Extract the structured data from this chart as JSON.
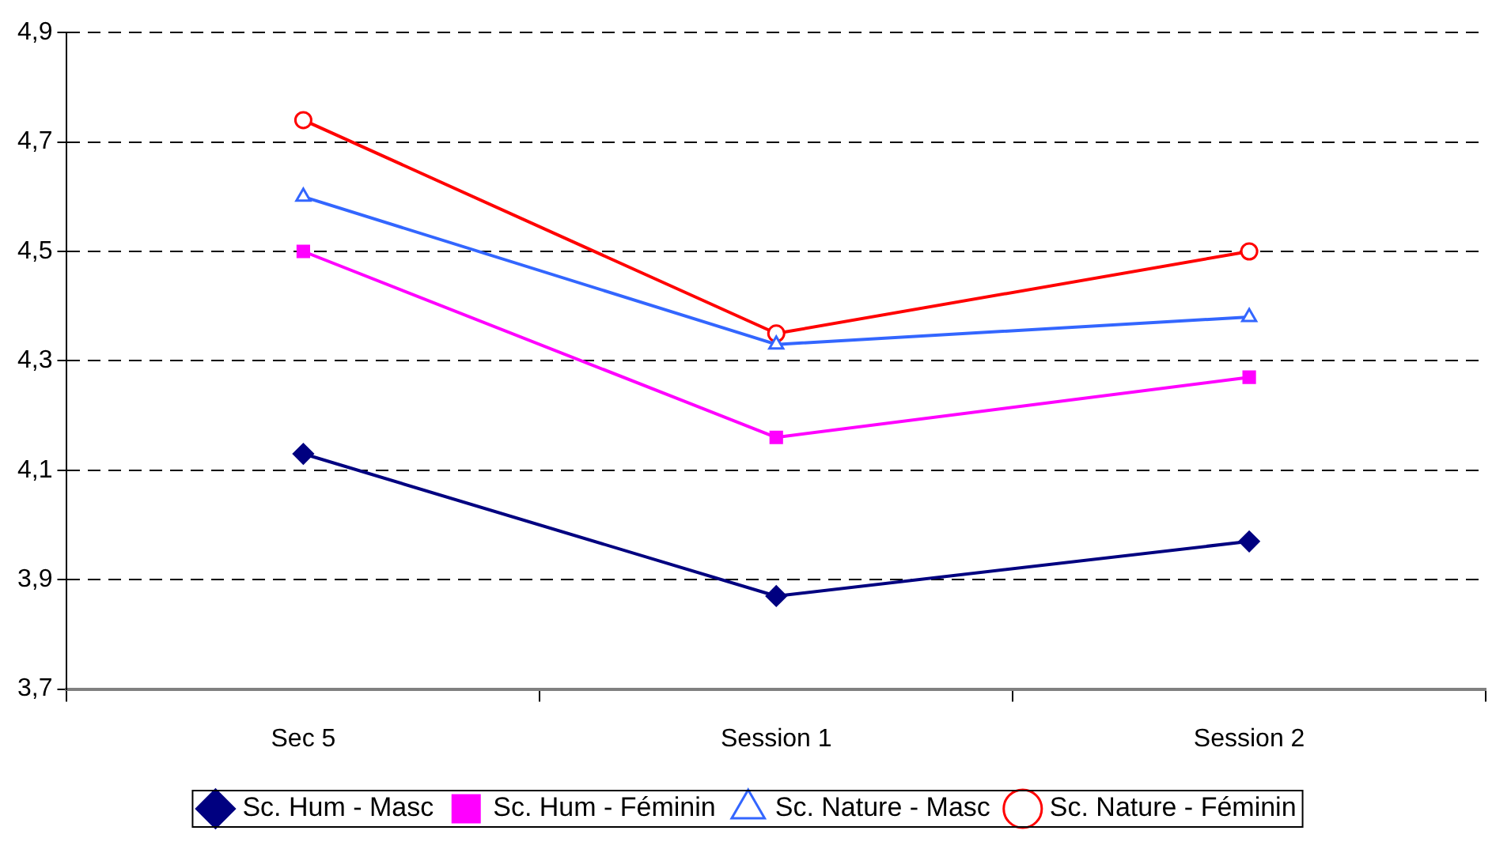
{
  "chart_data": {
    "type": "line",
    "categories": [
      "Sec 5",
      "Session 1",
      "Session 2"
    ],
    "series": [
      {
        "name": "Sc. Hum - Masc",
        "color": "#000080",
        "marker": "diamond",
        "values": [
          4.13,
          3.87,
          3.97
        ]
      },
      {
        "name": "Sc. Hum - Féminin",
        "color": "#ff00ff",
        "marker": "square",
        "values": [
          4.5,
          4.16,
          4.27
        ]
      },
      {
        "name": "Sc. Nature - Masc",
        "color": "#3366ff",
        "marker": "triangle",
        "values": [
          4.6,
          4.33,
          4.38
        ]
      },
      {
        "name": "Sc. Nature - Féminin",
        "color": "#ff0000",
        "marker": "circle",
        "values": [
          4.74,
          4.35,
          4.5
        ]
      }
    ],
    "ylim": [
      3.7,
      4.9
    ],
    "yticks": [
      {
        "value": 3.7,
        "label": "3,7"
      },
      {
        "value": 3.9,
        "label": "3,9"
      },
      {
        "value": 4.1,
        "label": "4,1"
      },
      {
        "value": 4.3,
        "label": "4,3"
      },
      {
        "value": 4.5,
        "label": "4,5"
      },
      {
        "value": 4.7,
        "label": "4,7"
      },
      {
        "value": 4.9,
        "label": "4,9"
      }
    ],
    "grid": "y",
    "legend": "bottom",
    "line_style": "solid"
  }
}
